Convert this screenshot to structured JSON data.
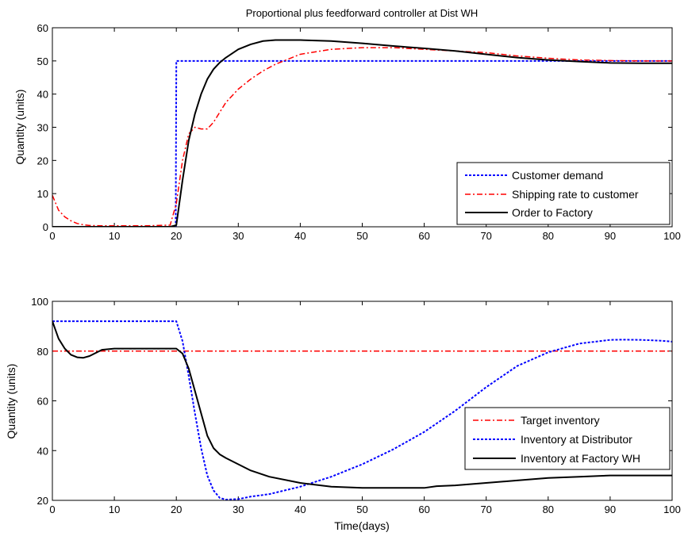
{
  "chart_data": [
    {
      "type": "line",
      "title": "Proportional plus feedforward controller at Dist WH",
      "xlabel": "",
      "ylabel": "Quantity (units)",
      "xlim": [
        0,
        100
      ],
      "ylim": [
        0,
        60
      ],
      "xticks": [
        "0",
        "10",
        "20",
        "30",
        "40",
        "50",
        "60",
        "70",
        "80",
        "90",
        "100"
      ],
      "yticks": [
        "0",
        "10",
        "20",
        "30",
        "40",
        "50",
        "60"
      ],
      "grid": false,
      "legend": "bottom-right",
      "series": [
        {
          "name": "Customer demand",
          "color": "#0000ff",
          "style": "dotted",
          "x": [
            0,
            19.9,
            20,
            100
          ],
          "y": [
            0,
            0,
            50,
            50
          ]
        },
        {
          "name": "Shipping rate to customer",
          "color": "#ff0000",
          "style": "dashdot",
          "x": [
            0,
            1,
            2,
            3,
            4,
            5,
            6,
            8,
            10,
            15,
            19,
            20,
            21,
            22,
            23,
            24,
            25,
            26,
            27,
            28,
            30,
            32,
            34,
            36,
            38,
            40,
            45,
            50,
            55,
            60,
            65,
            70,
            75,
            80,
            85,
            90,
            95,
            100
          ],
          "y": [
            9.5,
            5,
            3,
            1.8,
            1,
            0.6,
            0.4,
            0.3,
            0.3,
            0.3,
            0.5,
            7,
            20,
            28,
            30,
            29.5,
            29.5,
            31.5,
            34.5,
            37.5,
            41.5,
            44.5,
            47,
            49,
            50.5,
            52,
            53.5,
            54,
            54,
            53.5,
            53,
            52.5,
            51.5,
            50.8,
            50.3,
            50.1,
            50,
            50
          ]
        },
        {
          "name": "Order to Factory",
          "color": "#000000",
          "style": "solid",
          "x": [
            0,
            19,
            20,
            21,
            22,
            23,
            24,
            25,
            26,
            27,
            28,
            30,
            32,
            34,
            36,
            38,
            40,
            45,
            50,
            55,
            60,
            65,
            70,
            75,
            80,
            85,
            90,
            95,
            100
          ],
          "y": [
            0,
            0,
            0.5,
            14,
            26,
            34,
            40,
            44.5,
            47.5,
            49.5,
            51,
            53.5,
            55,
            56,
            56.3,
            56.3,
            56.3,
            56,
            55.3,
            54.5,
            53.8,
            53,
            52,
            51,
            50.3,
            49.8,
            49.4,
            49.3,
            49.3
          ]
        }
      ]
    },
    {
      "type": "line",
      "title": "",
      "xlabel": "Time(days)",
      "ylabel": "Quantity (units)",
      "xlim": [
        0,
        100
      ],
      "ylim": [
        20,
        100
      ],
      "xticks": [
        "0",
        "10",
        "20",
        "30",
        "40",
        "50",
        "60",
        "70",
        "80",
        "90",
        "100"
      ],
      "yticks": [
        "20",
        "40",
        "60",
        "80",
        "100"
      ],
      "grid": false,
      "legend": "bottom-right",
      "series": [
        {
          "name": "Target inventory",
          "color": "#ff0000",
          "style": "dashdot",
          "x": [
            0,
            100
          ],
          "y": [
            80,
            80
          ]
        },
        {
          "name": "Inventory at Distributor",
          "color": "#0000ff",
          "style": "dotted",
          "x": [
            0,
            20,
            21,
            22,
            23,
            24,
            25,
            26,
            27,
            28,
            30,
            32,
            35,
            40,
            45,
            50,
            55,
            60,
            65,
            70,
            75,
            80,
            85,
            90,
            92,
            95,
            98,
            100
          ],
          "y": [
            92,
            92,
            84,
            70,
            55,
            41,
            30,
            24,
            21,
            20.3,
            20.5,
            21.5,
            22.5,
            25.5,
            29.5,
            34.5,
            40.5,
            47.5,
            56,
            65.5,
            74,
            79.5,
            83,
            84.5,
            84.6,
            84.5,
            84.2,
            83.8
          ]
        },
        {
          "name": "Inventory at Factory WH",
          "color": "#000000",
          "style": "solid",
          "x": [
            0,
            1,
            2,
            3,
            4,
            5,
            6,
            8,
            10,
            15,
            20,
            21,
            22,
            23,
            24,
            25,
            26,
            27,
            28,
            30,
            32,
            35,
            40,
            45,
            50,
            55,
            60,
            62,
            65,
            70,
            75,
            80,
            85,
            90,
            95,
            100
          ],
          "y": [
            92,
            85,
            81,
            78.5,
            77.5,
            77.3,
            78,
            80.5,
            81,
            81,
            81,
            79,
            73,
            64,
            55,
            46,
            41,
            38.5,
            37,
            34.5,
            32,
            29.5,
            27,
            25.5,
            25,
            25,
            25,
            25.7,
            26,
            27,
            28,
            29,
            29.5,
            30,
            30,
            30
          ]
        }
      ]
    }
  ]
}
